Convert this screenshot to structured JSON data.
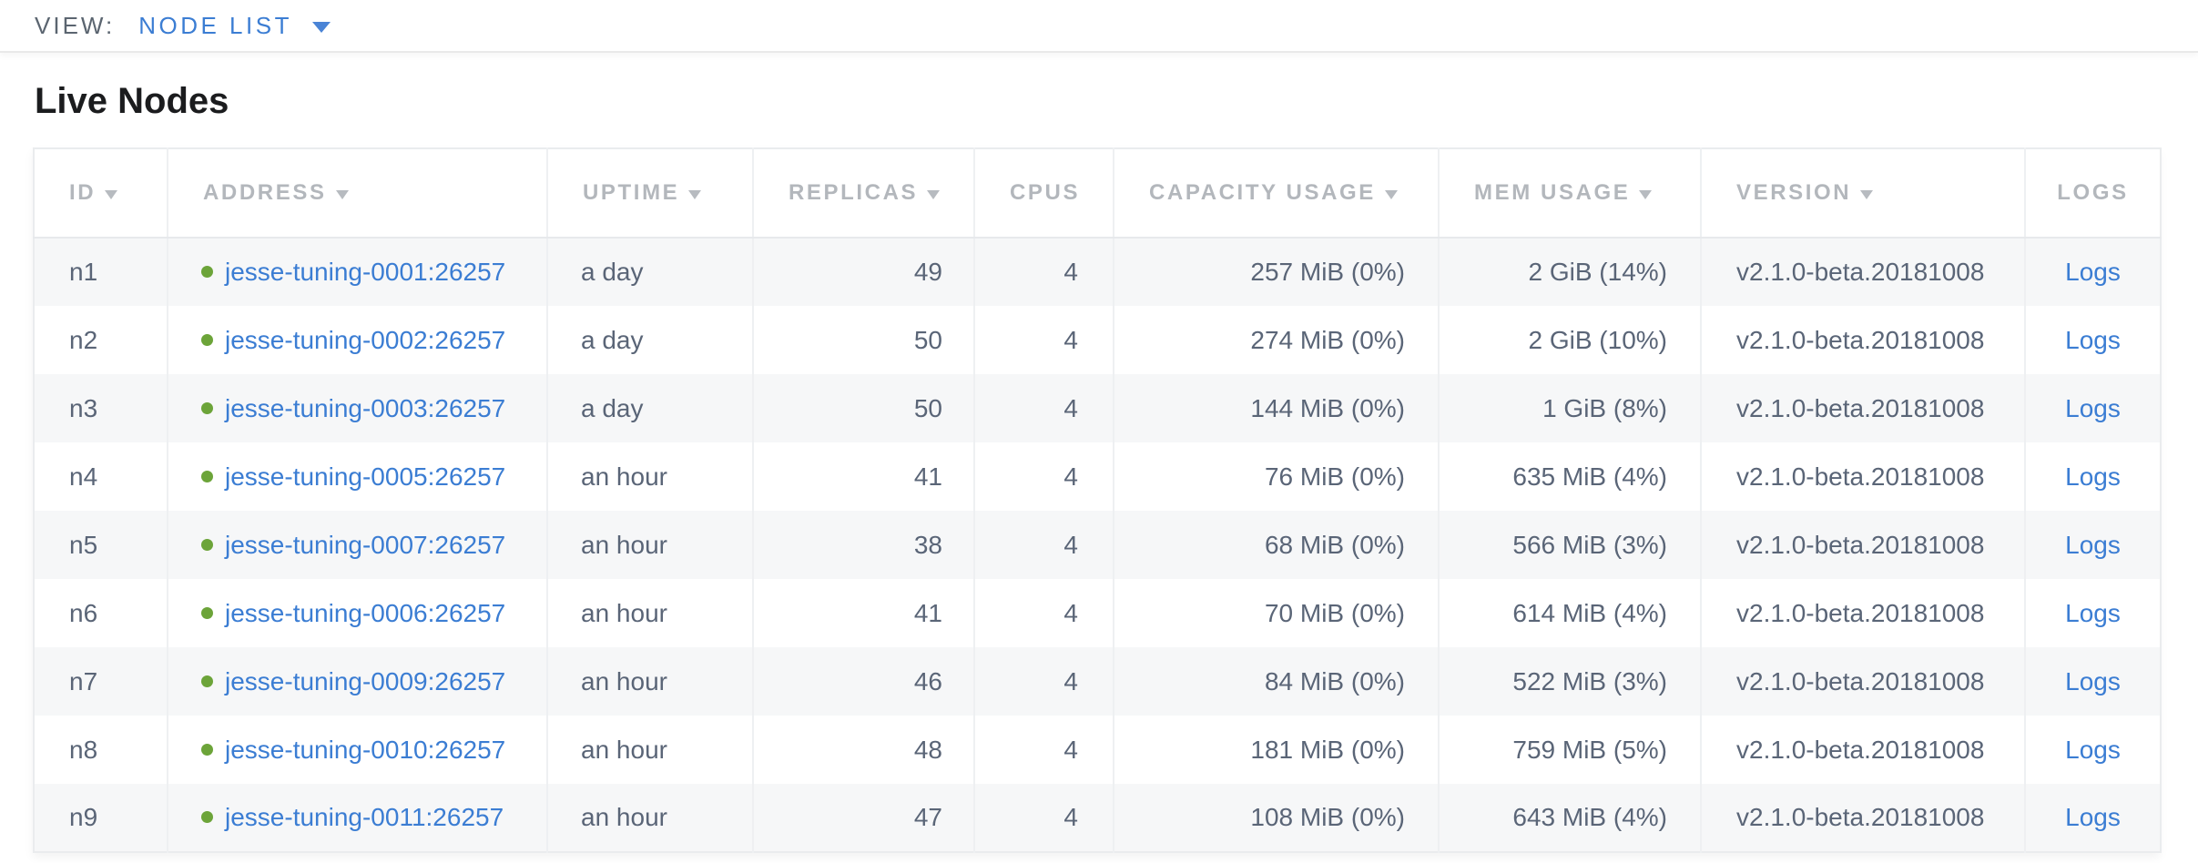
{
  "view_bar": {
    "label": "VIEW:",
    "selected": "NODE LIST"
  },
  "heading": "Live Nodes",
  "table": {
    "columns": [
      {
        "label": "ID",
        "sort_arrow": true
      },
      {
        "label": "ADDRESS",
        "sort_arrow": true
      },
      {
        "label": "UPTIME",
        "sort_arrow": true
      },
      {
        "label": "REPLICAS",
        "sort_arrow": true
      },
      {
        "label": "CPUS",
        "sort_arrow": false
      },
      {
        "label": "CAPACITY USAGE",
        "sort_arrow": true
      },
      {
        "label": "MEM USAGE",
        "sort_arrow": true
      },
      {
        "label": "VERSION",
        "sort_arrow": true
      },
      {
        "label": "LOGS",
        "sort_arrow": false
      }
    ],
    "rows": [
      {
        "id": "n1",
        "status": "healthy",
        "address": "jesse-tuning-0001:26257",
        "uptime": "a day",
        "replicas": "49",
        "cpus": "4",
        "capacity_usage": "257 MiB (0%)",
        "mem_usage": "2 GiB (14%)",
        "version": "v2.1.0-beta.20181008",
        "logs_label": "Logs"
      },
      {
        "id": "n2",
        "status": "healthy",
        "address": "jesse-tuning-0002:26257",
        "uptime": "a day",
        "replicas": "50",
        "cpus": "4",
        "capacity_usage": "274 MiB (0%)",
        "mem_usage": "2 GiB (10%)",
        "version": "v2.1.0-beta.20181008",
        "logs_label": "Logs"
      },
      {
        "id": "n3",
        "status": "healthy",
        "address": "jesse-tuning-0003:26257",
        "uptime": "a day",
        "replicas": "50",
        "cpus": "4",
        "capacity_usage": "144 MiB (0%)",
        "mem_usage": "1 GiB (8%)",
        "version": "v2.1.0-beta.20181008",
        "logs_label": "Logs"
      },
      {
        "id": "n4",
        "status": "healthy",
        "address": "jesse-tuning-0005:26257",
        "uptime": "an hour",
        "replicas": "41",
        "cpus": "4",
        "capacity_usage": "76 MiB (0%)",
        "mem_usage": "635 MiB (4%)",
        "version": "v2.1.0-beta.20181008",
        "logs_label": "Logs"
      },
      {
        "id": "n5",
        "status": "healthy",
        "address": "jesse-tuning-0007:26257",
        "uptime": "an hour",
        "replicas": "38",
        "cpus": "4",
        "capacity_usage": "68 MiB (0%)",
        "mem_usage": "566 MiB (3%)",
        "version": "v2.1.0-beta.20181008",
        "logs_label": "Logs"
      },
      {
        "id": "n6",
        "status": "healthy",
        "address": "jesse-tuning-0006:26257",
        "uptime": "an hour",
        "replicas": "41",
        "cpus": "4",
        "capacity_usage": "70 MiB (0%)",
        "mem_usage": "614 MiB (4%)",
        "version": "v2.1.0-beta.20181008",
        "logs_label": "Logs"
      },
      {
        "id": "n7",
        "status": "healthy",
        "address": "jesse-tuning-0009:26257",
        "uptime": "an hour",
        "replicas": "46",
        "cpus": "4",
        "capacity_usage": "84 MiB (0%)",
        "mem_usage": "522 MiB (3%)",
        "version": "v2.1.0-beta.20181008",
        "logs_label": "Logs"
      },
      {
        "id": "n8",
        "status": "healthy",
        "address": "jesse-tuning-0010:26257",
        "uptime": "an hour",
        "replicas": "48",
        "cpus": "4",
        "capacity_usage": "181 MiB (0%)",
        "mem_usage": "759 MiB (5%)",
        "version": "v2.1.0-beta.20181008",
        "logs_label": "Logs"
      },
      {
        "id": "n9",
        "status": "healthy",
        "address": "jesse-tuning-0011:26257",
        "uptime": "an hour",
        "replicas": "47",
        "cpus": "4",
        "capacity_usage": "108 MiB (0%)",
        "mem_usage": "643 MiB (4%)",
        "version": "v2.1.0-beta.20181008",
        "logs_label": "Logs"
      }
    ]
  },
  "icons": {
    "dropdown_caret": "triangle-down",
    "sort_arrow": "triangle-down",
    "node_status_healthy": "green-dot"
  },
  "colors": {
    "accent_blue": "#3b7dd3",
    "healthy_green": "#6ca439",
    "header_text": "#b3b7bc",
    "cell_text": "#5a6577",
    "row_stripe": "#f6f7f8",
    "title_text": "#1b1c1e"
  }
}
